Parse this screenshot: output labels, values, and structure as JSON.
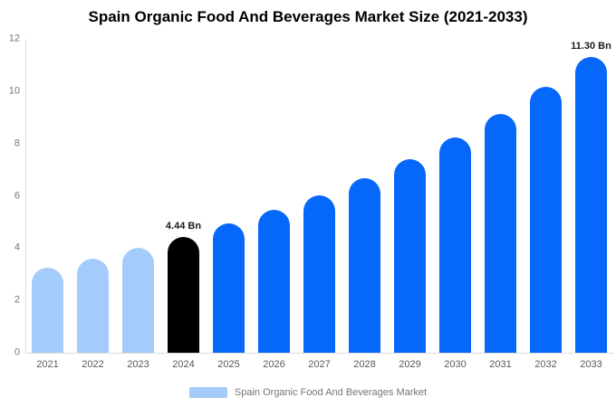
{
  "chart": {
    "title": "Spain Organic Food And Beverages Market Size (2021-2033)"
  },
  "legend": {
    "label": "Spain Organic Food And Beverages Market",
    "swatch_color": "#A3CCFA"
  },
  "chart_data": {
    "type": "bar",
    "title": "Spain Organic Food And Beverages Market Size (2021-2033)",
    "categories": [
      "2021",
      "2022",
      "2023",
      "2024",
      "2025",
      "2026",
      "2027",
      "2028",
      "2029",
      "2030",
      "2031",
      "2032",
      "2033"
    ],
    "values": [
      3.25,
      3.6,
      4.0,
      4.44,
      4.93,
      5.46,
      6.03,
      6.68,
      7.4,
      8.22,
      9.12,
      10.15,
      11.3
    ],
    "unit": "Bn",
    "bar_colors": [
      "#A3CCFA",
      "#A3CCFA",
      "#A3CCFA",
      "#000000",
      "#0667FB",
      "#0667FB",
      "#0667FB",
      "#0667FB",
      "#0667FB",
      "#0667FB",
      "#0667FB",
      "#0667FB",
      "#0667FB"
    ],
    "annotations": [
      {
        "category": "2024",
        "text": "4.44 Bn"
      },
      {
        "category": "2033",
        "text": "11.30 Bn"
      }
    ],
    "xlabel": "",
    "ylabel": "",
    "ylim": [
      0,
      12
    ],
    "yticks": [
      0,
      2,
      4,
      6,
      8,
      10,
      12
    ],
    "grid": false,
    "legend_position": "bottom",
    "colors": {
      "historical": "#A3CCFA",
      "base_year": "#000000",
      "forecast": "#0667FB",
      "axis_line": "#dddddd"
    }
  }
}
